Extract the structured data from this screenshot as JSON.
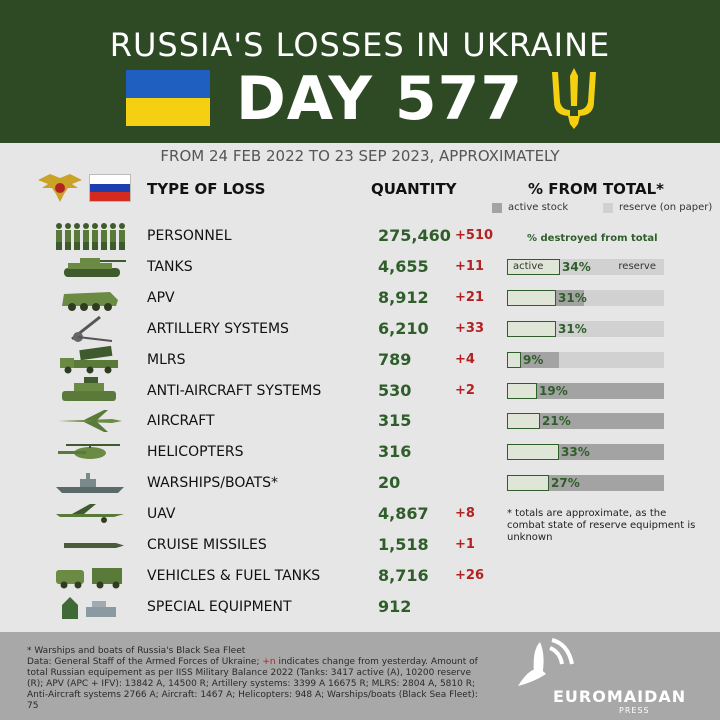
{
  "header": {
    "title": "RUSSIA'S LOSSES IN UKRAINE",
    "day_label": "DAY 577",
    "subtitle": "FROM 24 FEB 2022 TO 23 SEP 2023, APPROXIMATELY"
  },
  "columns": {
    "type": "TYPE OF LOSS",
    "quantity": "QUANTITY",
    "percent": "% FROM TOTAL*",
    "legend_active": "active stock",
    "legend_reserve": "reserve (on paper)"
  },
  "colors": {
    "header_bg": "#2e4a25",
    "quantity": "#2f5e2a",
    "change": "#b32121",
    "active": "#a3a3a3",
    "reserve": "#d1d1d1"
  },
  "destroyed_note": "% destroyed from total",
  "bar_labels": {
    "active": "active",
    "reserve": "reserve"
  },
  "rows": [
    {
      "icon": "soldiers-icon",
      "label": "PERSONNEL",
      "qty": "275,460",
      "chg": "+510"
    },
    {
      "icon": "tank-icon",
      "label": "TANKS",
      "qty": "4,655",
      "chg": "+11",
      "pct": 34,
      "active_share": 0.25
    },
    {
      "icon": "apc-icon",
      "label": "APV",
      "qty": "8,912",
      "chg": "+21",
      "pct": 31,
      "active_share": 0.49
    },
    {
      "icon": "artillery-icon",
      "label": "ARTILLERY SYSTEMS",
      "qty": "6,210",
      "chg": "+33",
      "pct": 31,
      "active_share": 0.17
    },
    {
      "icon": "mlrs-icon",
      "label": "MLRS",
      "qty": "789",
      "chg": "+4",
      "pct": 9,
      "active_share": 0.33
    },
    {
      "icon": "anti-aircraft-icon",
      "label": "ANTI-AIRCRAFT SYSTEMS",
      "qty": "530",
      "chg": "+2",
      "pct": 19,
      "active_share": 1
    },
    {
      "icon": "aircraft-icon",
      "label": "AIRCRAFT",
      "qty": "315",
      "chg": "",
      "pct": 21,
      "active_share": 1
    },
    {
      "icon": "helicopter-icon",
      "label": "HELICOPTERS",
      "qty": "316",
      "chg": "",
      "pct": 33,
      "active_share": 1
    },
    {
      "icon": "warship-icon",
      "label": "WARSHIPS/BOATS*",
      "qty": "20",
      "chg": "",
      "pct": 27,
      "active_share": 1
    },
    {
      "icon": "uav-icon",
      "label": "UAV",
      "qty": "4,867",
      "chg": "+8"
    },
    {
      "icon": "cruise-missile-icon",
      "label": "CRUISE MISSILES",
      "qty": "1,518",
      "chg": "+1"
    },
    {
      "icon": "truck-icon",
      "label": "VEHICLES & FUEL TANKS",
      "qty": "8,716",
      "chg": "+26"
    },
    {
      "icon": "special-equipment-icon",
      "label": "SPECIAL EQUIPMENT",
      "qty": "912",
      "chg": ""
    }
  ],
  "note": "* totals are approximate, as the combat state of reserve equipment is unknown",
  "footer": {
    "line1": "* Warships and boats of Russia's Black Sea Fleet",
    "line2a": "Data: General Staff of the Armed Forces of Ukraine; ",
    "plus_n": "+n",
    "line2b": " indicates change from yesterday. Amount of total Russian equipement as per IISS Military Balance 2022 (Tanks: 3417 active (A), 10200 reserve (R); APV (APC + IFV): 13842 A, 14500 R; Artillery systems: 3399 A 16675 R; MLRS: 2804 A, 5810 R; Anti-Aircraft systems 2766 A; Aircraft: 1467 A; Helicopters: 948 A; Warships/boats (Black Sea Fleet): 75",
    "logo": "EUROMAIDAN",
    "logo_sub": "PRESS"
  }
}
